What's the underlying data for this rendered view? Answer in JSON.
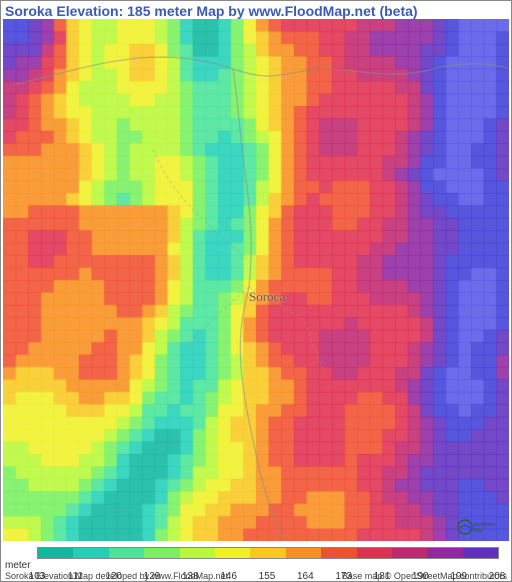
{
  "title": "Soroka Elevation: 185 meter Map by www.FloodMap.net (beta)",
  "city_label": "Soroca",
  "meter_label": "meter",
  "credit_left": "Soroka Elevation Map developed by www.FloodMap.net",
  "credit_right": "Base map © OpenStreetMap contributors",
  "legend": {
    "values": [
      103,
      111,
      120,
      129,
      138,
      146,
      155,
      164,
      173,
      181,
      190,
      199,
      208
    ],
    "colors": [
      "#10b8a0",
      "#22d0b8",
      "#48e498",
      "#78f060",
      "#b8f838",
      "#f0f028",
      "#f8c820",
      "#f89020",
      "#f05030",
      "#e03050",
      "#c02870",
      "#9028a0",
      "#6030c0"
    ]
  },
  "map": {
    "width_cells": 40,
    "height_cells": 42,
    "background_color": "#ffffff",
    "palette": [
      "#10b8a0",
      "#22d0b8",
      "#48e498",
      "#78f060",
      "#b8f838",
      "#f0f028",
      "#f8c820",
      "#f89020",
      "#f05030",
      "#e03050",
      "#c02870",
      "#9028a0",
      "#6030c0",
      "#4040d8",
      "#5858e8"
    ]
  },
  "roads": {
    "stroke": "#8a8a8a",
    "stroke_width": 1.2,
    "paths": [
      "M 10 66 C 80 50, 150 22, 230 50 C 260 60, 268 58, 300 52",
      "M 300 52 C 340 44, 380 64, 430 50 C 460 42, 490 44, 506 50",
      "M 230 50 C 236 90, 238 130, 244 168 C 248 200, 250 230, 246 268",
      "M 246 268 C 240 296, 228 328, 250 420 C 256 456, 270 500, 280 520"
    ]
  },
  "river": {
    "fill": "rgba(80,100,220,0.0)",
    "path": ""
  }
}
